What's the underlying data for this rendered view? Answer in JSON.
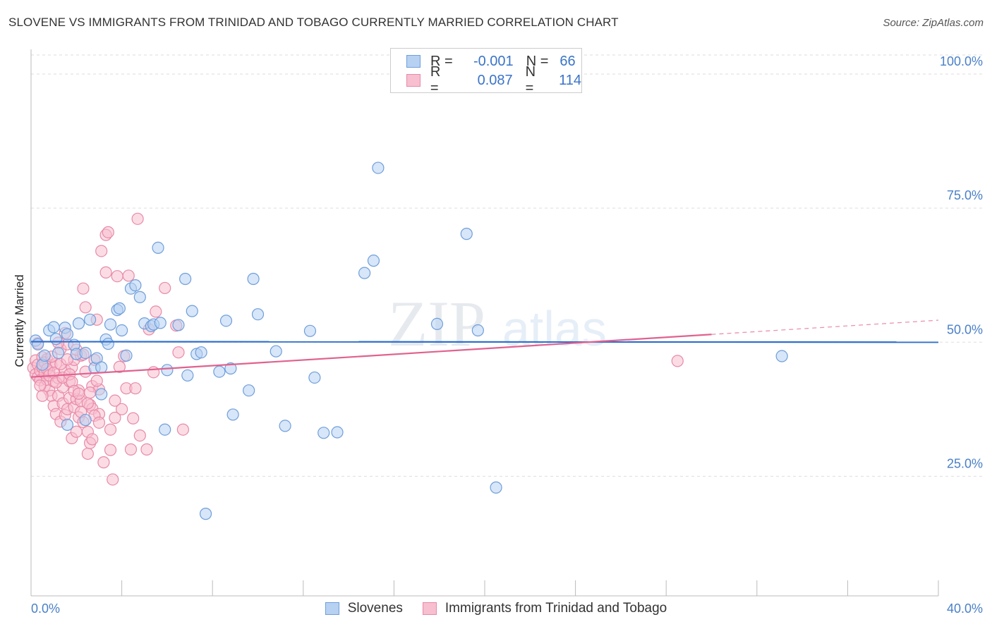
{
  "title": "SLOVENE VS IMMIGRANTS FROM TRINIDAD AND TOBAGO CURRENTLY MARRIED CORRELATION CHART",
  "source": "Source: ZipAtlas.com",
  "watermark": {
    "zip": "ZIP",
    "atlas": "atlas"
  },
  "legend": {
    "r_label": "R =",
    "n_label": "N =",
    "rows": [
      {
        "r": "-0.001",
        "n": "66"
      },
      {
        "r": "0.087",
        "n": "114"
      }
    ]
  },
  "bottom_legend": [
    "Slovenes",
    "Immigrants from Trinidad and Tobago"
  ],
  "colors": {
    "blue_fill": "#b7d1f2",
    "blue_stroke": "#6f9edb",
    "blue_line": "#2f6fcc",
    "pink_fill": "#f7bfd0",
    "pink_stroke": "#e88aa8",
    "pink_line": "#e0628f",
    "axis_text": "#4a80c8",
    "grid": "#dddddd"
  },
  "chart_data": {
    "type": "scatter",
    "xlabel": "",
    "ylabel": "Currently Married",
    "xlim": [
      0,
      40
    ],
    "ylim": [
      2.7,
      104.6
    ],
    "x_tick_labels": [
      {
        "value": 0,
        "label": "0.0%"
      },
      {
        "value": 40,
        "label": "40.0%"
      }
    ],
    "y_tick_labels": [
      {
        "value": 25,
        "label": "25.0%"
      },
      {
        "value": 50,
        "label": "50.0%"
      },
      {
        "value": 75,
        "label": "75.0%"
      },
      {
        "value": 100,
        "label": "100.0%"
      }
    ],
    "grid": true,
    "legend_position": "top-center",
    "series": [
      {
        "name": "Slovenes",
        "r": -0.001,
        "n": 66,
        "trend": {
          "x": [
            0,
            40
          ],
          "y": [
            50.1,
            50.0
          ],
          "dashed_from": null
        },
        "points": [
          [
            0.2,
            50.3
          ],
          [
            0.3,
            49.6
          ],
          [
            0.5,
            45.8
          ],
          [
            0.6,
            47.5
          ],
          [
            0.8,
            52.2
          ],
          [
            1.0,
            52.8
          ],
          [
            1.1,
            50.6
          ],
          [
            1.2,
            48.0
          ],
          [
            1.5,
            52.7
          ],
          [
            1.6,
            51.5
          ],
          [
            1.9,
            49.5
          ],
          [
            2.0,
            47.8
          ],
          [
            2.1,
            53.5
          ],
          [
            2.4,
            48.0
          ],
          [
            2.6,
            54.2
          ],
          [
            2.8,
            45.2
          ],
          [
            2.9,
            47.0
          ],
          [
            3.1,
            40.3
          ],
          [
            3.3,
            50.5
          ],
          [
            3.4,
            49.7
          ],
          [
            3.5,
            53.3
          ],
          [
            3.8,
            56.0
          ],
          [
            3.9,
            56.3
          ],
          [
            4.0,
            52.2
          ],
          [
            4.2,
            47.5
          ],
          [
            4.4,
            60.0
          ],
          [
            4.6,
            60.6
          ],
          [
            4.8,
            58.4
          ],
          [
            5.0,
            53.5
          ],
          [
            5.3,
            53.0
          ],
          [
            5.4,
            53.3
          ],
          [
            5.6,
            67.6
          ],
          [
            5.7,
            53.6
          ],
          [
            5.9,
            33.7
          ],
          [
            6.0,
            44.8
          ],
          [
            6.5,
            53.2
          ],
          [
            6.8,
            61.8
          ],
          [
            6.9,
            43.8
          ],
          [
            7.1,
            55.8
          ],
          [
            7.3,
            47.8
          ],
          [
            7.5,
            48.1
          ],
          [
            7.7,
            18.0
          ],
          [
            8.3,
            44.5
          ],
          [
            8.6,
            54.0
          ],
          [
            8.8,
            45.1
          ],
          [
            8.9,
            36.5
          ],
          [
            9.6,
            41.0
          ],
          [
            9.8,
            61.8
          ],
          [
            10.0,
            55.2
          ],
          [
            10.8,
            48.3
          ],
          [
            11.2,
            34.4
          ],
          [
            12.3,
            52.1
          ],
          [
            12.5,
            43.4
          ],
          [
            12.9,
            33.1
          ],
          [
            13.5,
            33.2
          ],
          [
            14.7,
            62.9
          ],
          [
            15.1,
            65.2
          ],
          [
            15.3,
            82.5
          ],
          [
            17.9,
            53.4
          ],
          [
            19.2,
            70.2
          ],
          [
            19.7,
            52.2
          ],
          [
            20.5,
            22.9
          ],
          [
            33.1,
            47.4
          ],
          [
            1.6,
            34.6
          ],
          [
            3.1,
            45.3
          ],
          [
            2.4,
            35.5
          ]
        ]
      },
      {
        "name": "Immigrants from Trinidad and Tobago",
        "r": 0.087,
        "n": 114,
        "trend": {
          "x": [
            0,
            40
          ],
          "y": [
            43.5,
            54.1
          ],
          "dashed_from": 30.0
        },
        "points": [
          [
            0.1,
            45.2
          ],
          [
            0.2,
            44.0
          ],
          [
            0.2,
            46.6
          ],
          [
            0.3,
            43.5
          ],
          [
            0.3,
            45.8
          ],
          [
            0.4,
            44.7
          ],
          [
            0.4,
            42.9
          ],
          [
            0.5,
            47.2
          ],
          [
            0.5,
            45.3
          ],
          [
            0.6,
            41.8
          ],
          [
            0.6,
            44.2
          ],
          [
            0.7,
            43.0
          ],
          [
            0.7,
            46.8
          ],
          [
            0.8,
            41.0
          ],
          [
            0.8,
            44.5
          ],
          [
            0.9,
            40.0
          ],
          [
            0.9,
            45.7
          ],
          [
            1.0,
            38.1
          ],
          [
            1.0,
            42.7
          ],
          [
            1.1,
            36.6
          ],
          [
            1.1,
            46.0
          ],
          [
            1.2,
            40.0
          ],
          [
            1.2,
            43.3
          ],
          [
            1.3,
            35.2
          ],
          [
            1.3,
            48.7
          ],
          [
            1.4,
            38.6
          ],
          [
            1.4,
            41.6
          ],
          [
            1.5,
            36.4
          ],
          [
            1.5,
            44.8
          ],
          [
            1.6,
            37.5
          ],
          [
            1.6,
            49.6
          ],
          [
            1.7,
            39.6
          ],
          [
            1.7,
            42.7
          ],
          [
            1.8,
            32.1
          ],
          [
            1.8,
            45.3
          ],
          [
            1.9,
            37.9
          ],
          [
            1.9,
            46.7
          ],
          [
            2.0,
            33.3
          ],
          [
            2.0,
            39.4
          ],
          [
            2.1,
            36.0
          ],
          [
            2.1,
            41.0
          ],
          [
            2.2,
            39.0
          ],
          [
            2.2,
            47.5
          ],
          [
            2.3,
            35.1
          ],
          [
            2.3,
            60.0
          ],
          [
            2.4,
            56.5
          ],
          [
            2.5,
            33.3
          ],
          [
            2.5,
            29.2
          ],
          [
            2.6,
            31.2
          ],
          [
            2.6,
            38.3
          ],
          [
            2.7,
            41.8
          ],
          [
            2.7,
            37.6
          ],
          [
            2.8,
            46.7
          ],
          [
            2.9,
            54.2
          ],
          [
            3.0,
            36.6
          ],
          [
            3.0,
            41.2
          ],
          [
            3.1,
            67.0
          ],
          [
            3.2,
            27.6
          ],
          [
            3.3,
            63.0
          ],
          [
            3.3,
            70.0
          ],
          [
            3.4,
            70.5
          ],
          [
            3.5,
            33.7
          ],
          [
            3.5,
            29.9
          ],
          [
            3.6,
            24.4
          ],
          [
            3.7,
            39.1
          ],
          [
            3.7,
            35.9
          ],
          [
            3.8,
            62.3
          ],
          [
            3.9,
            45.4
          ],
          [
            4.0,
            37.5
          ],
          [
            4.1,
            47.4
          ],
          [
            4.2,
            41.4
          ],
          [
            4.3,
            62.4
          ],
          [
            4.4,
            30.0
          ],
          [
            4.5,
            35.8
          ],
          [
            4.6,
            41.4
          ],
          [
            4.7,
            73.0
          ],
          [
            4.8,
            32.6
          ],
          [
            5.1,
            30.0
          ],
          [
            5.2,
            52.4
          ],
          [
            5.4,
            44.4
          ],
          [
            5.5,
            55.7
          ],
          [
            5.9,
            60.1
          ],
          [
            6.4,
            53.1
          ],
          [
            6.5,
            48.1
          ],
          [
            6.7,
            33.7
          ],
          [
            0.3,
            49.8
          ],
          [
            0.4,
            41.9
          ],
          [
            0.5,
            40.0
          ],
          [
            0.6,
            46.2
          ],
          [
            0.7,
            45.0
          ],
          [
            0.8,
            43.8
          ],
          [
            0.9,
            47.3
          ],
          [
            1.0,
            44.3
          ],
          [
            1.1,
            42.5
          ],
          [
            1.2,
            49.9
          ],
          [
            1.3,
            45.9
          ],
          [
            1.4,
            43.4
          ],
          [
            1.5,
            51.7
          ],
          [
            1.6,
            46.8
          ],
          [
            1.7,
            44.0
          ],
          [
            1.8,
            42.6
          ],
          [
            1.9,
            40.9
          ],
          [
            2.0,
            48.6
          ],
          [
            2.1,
            40.4
          ],
          [
            2.2,
            37.0
          ],
          [
            2.3,
            47.7
          ],
          [
            2.4,
            44.5
          ],
          [
            2.5,
            38.6
          ],
          [
            2.6,
            40.6
          ],
          [
            2.7,
            31.9
          ],
          [
            2.8,
            36.3
          ],
          [
            2.9,
            42.8
          ],
          [
            3.0,
            35.0
          ],
          [
            28.5,
            46.5
          ]
        ]
      }
    ]
  }
}
